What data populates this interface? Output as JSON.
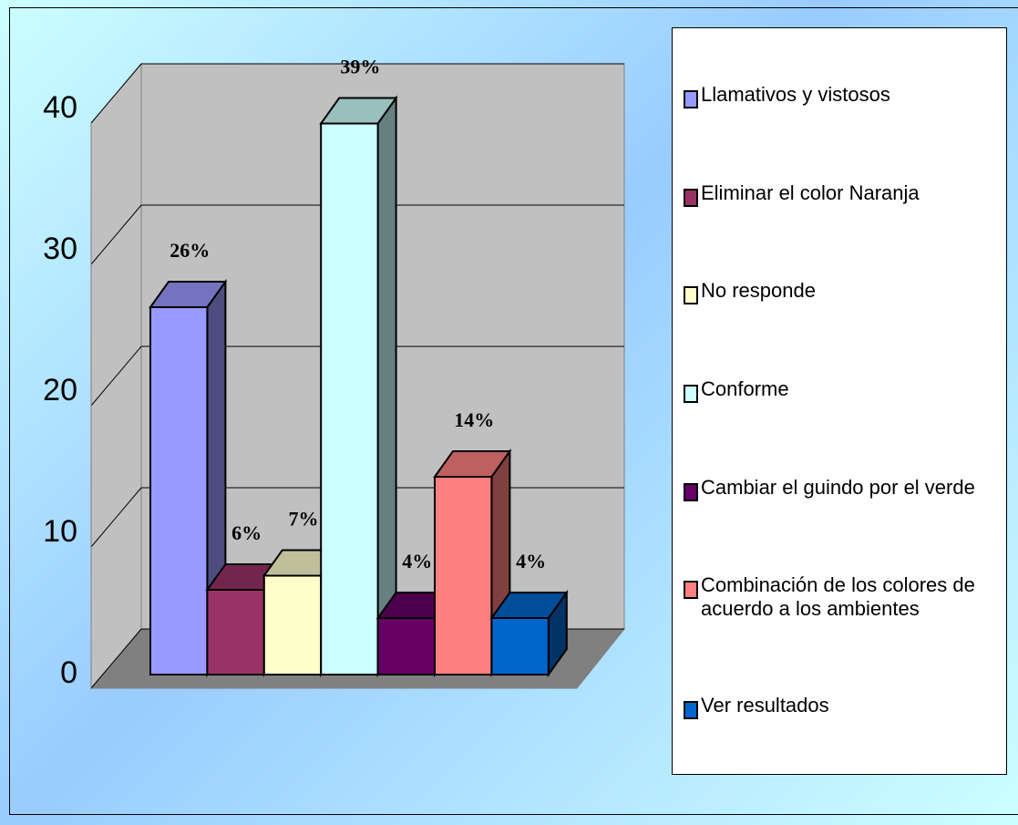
{
  "chart_data": {
    "type": "bar3d",
    "categories": [
      "Llamativos y vistosos",
      "Eliminar el color Naranja",
      "No responde",
      "Conforme",
      "Cambiar el guindo por el verde",
      "Combinación de los colores de acuerdo a los ambientes",
      "Ver resultados"
    ],
    "values": [
      26,
      6,
      7,
      39,
      4,
      14,
      4
    ],
    "value_labels": [
      "26%",
      "6%",
      "7%",
      "39%",
      "4%",
      "14%",
      "4%"
    ],
    "colors": [
      "#9999ff",
      "#993366",
      "#ffffcc",
      "#ccffff",
      "#660066",
      "#ff8080",
      "#0066cc"
    ],
    "ylim": [
      0,
      40
    ],
    "yticks": [
      0,
      10,
      20,
      30,
      40
    ],
    "grid": true,
    "legend": "right"
  }
}
